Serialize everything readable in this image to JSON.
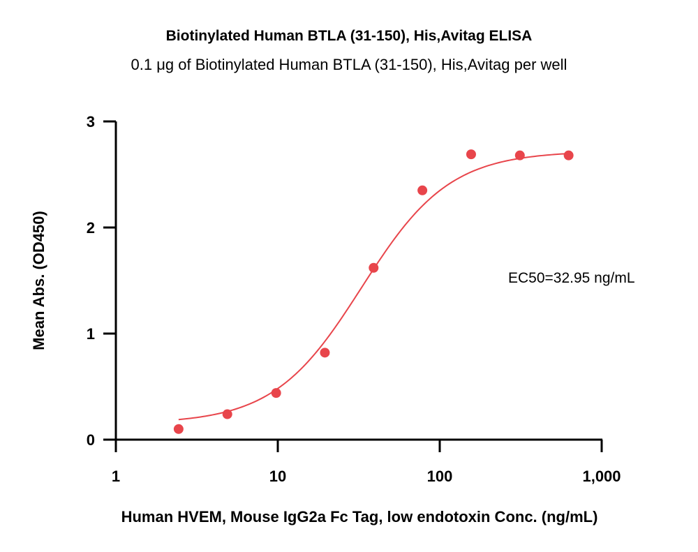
{
  "chart_data": {
    "type": "scatter",
    "title": "Biotinylated Human BTLA (31-150), His,Avitag ELISA",
    "subtitle": "0.1 μg of Biotinylated Human BTLA (31-150), His,Avitag per well",
    "xlabel": "Human HVEM, Mouse IgG2a Fc Tag, low endotoxin Conc. (ng/mL)",
    "ylabel": "Mean Abs. (OD450)",
    "x_scale": "log",
    "xlim": [
      1,
      1000
    ],
    "ylim": [
      0,
      3
    ],
    "x_ticks": [
      {
        "value": 1,
        "label": "1"
      },
      {
        "value": 10,
        "label": "10"
      },
      {
        "value": 100,
        "label": "100"
      },
      {
        "value": 1000,
        "label": "1,000"
      }
    ],
    "y_ticks": [
      {
        "value": 0,
        "label": "0"
      },
      {
        "value": 1,
        "label": "1"
      },
      {
        "value": 2,
        "label": "2"
      },
      {
        "value": 3,
        "label": "3"
      }
    ],
    "grid": false,
    "legend": "none",
    "series": [
      {
        "color": "#e8454b",
        "x": [
          2.44,
          4.88,
          9.77,
          19.53,
          39.06,
          78.13,
          156.25,
          312.5,
          625
        ],
        "y": [
          0.1,
          0.24,
          0.44,
          0.82,
          1.62,
          2.35,
          2.69,
          2.68,
          2.68
        ]
      }
    ],
    "fit": {
      "type": "4PL",
      "bottom": 0.15,
      "top": 2.72,
      "ec50": 32.95,
      "hill": 1.6
    },
    "annotations": [
      {
        "text": "EC50=32.95 ng/mL"
      }
    ]
  }
}
